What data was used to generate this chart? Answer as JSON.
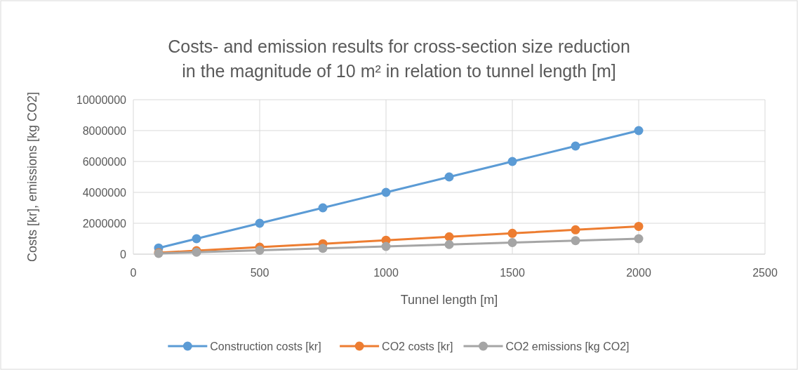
{
  "chart_data": {
    "type": "line",
    "title": "Costs- and emission results for cross-section size reduction in the magnitude of 10 m² in relation to tunnel length [m]",
    "xlabel": "Tunnel length [m]",
    "ylabel": "Costs [kr], emissions [kg CO2]",
    "x": [
      100,
      250,
      500,
      750,
      1000,
      1250,
      1500,
      1750,
      2000
    ],
    "series": [
      {
        "name": "Construction costs [kr]",
        "color": "#5b9bd5",
        "values": [
          400000,
          1000000,
          2000000,
          3000000,
          4000000,
          5000000,
          6000000,
          7000000,
          8000000
        ]
      },
      {
        "name": "CO2 costs [kr]",
        "color": "#ed7d31",
        "values": [
          90000,
          225000,
          450000,
          675000,
          900000,
          1125000,
          1350000,
          1575000,
          1800000
        ]
      },
      {
        "name": "CO2 emissions [kg CO2]",
        "color": "#a5a5a5",
        "values": [
          50000,
          125000,
          250000,
          375000,
          500000,
          625000,
          750000,
          875000,
          1000000
        ]
      }
    ],
    "xlim": [
      0,
      2500
    ],
    "xticks": [
      0,
      500,
      1000,
      1500,
      2000,
      2500
    ],
    "ylim": [
      0,
      10000000
    ],
    "yticks": [
      0,
      2000000,
      4000000,
      6000000,
      8000000,
      10000000
    ],
    "grid": true,
    "legend": "bottom",
    "marker": "circle",
    "line_style": "solid"
  }
}
